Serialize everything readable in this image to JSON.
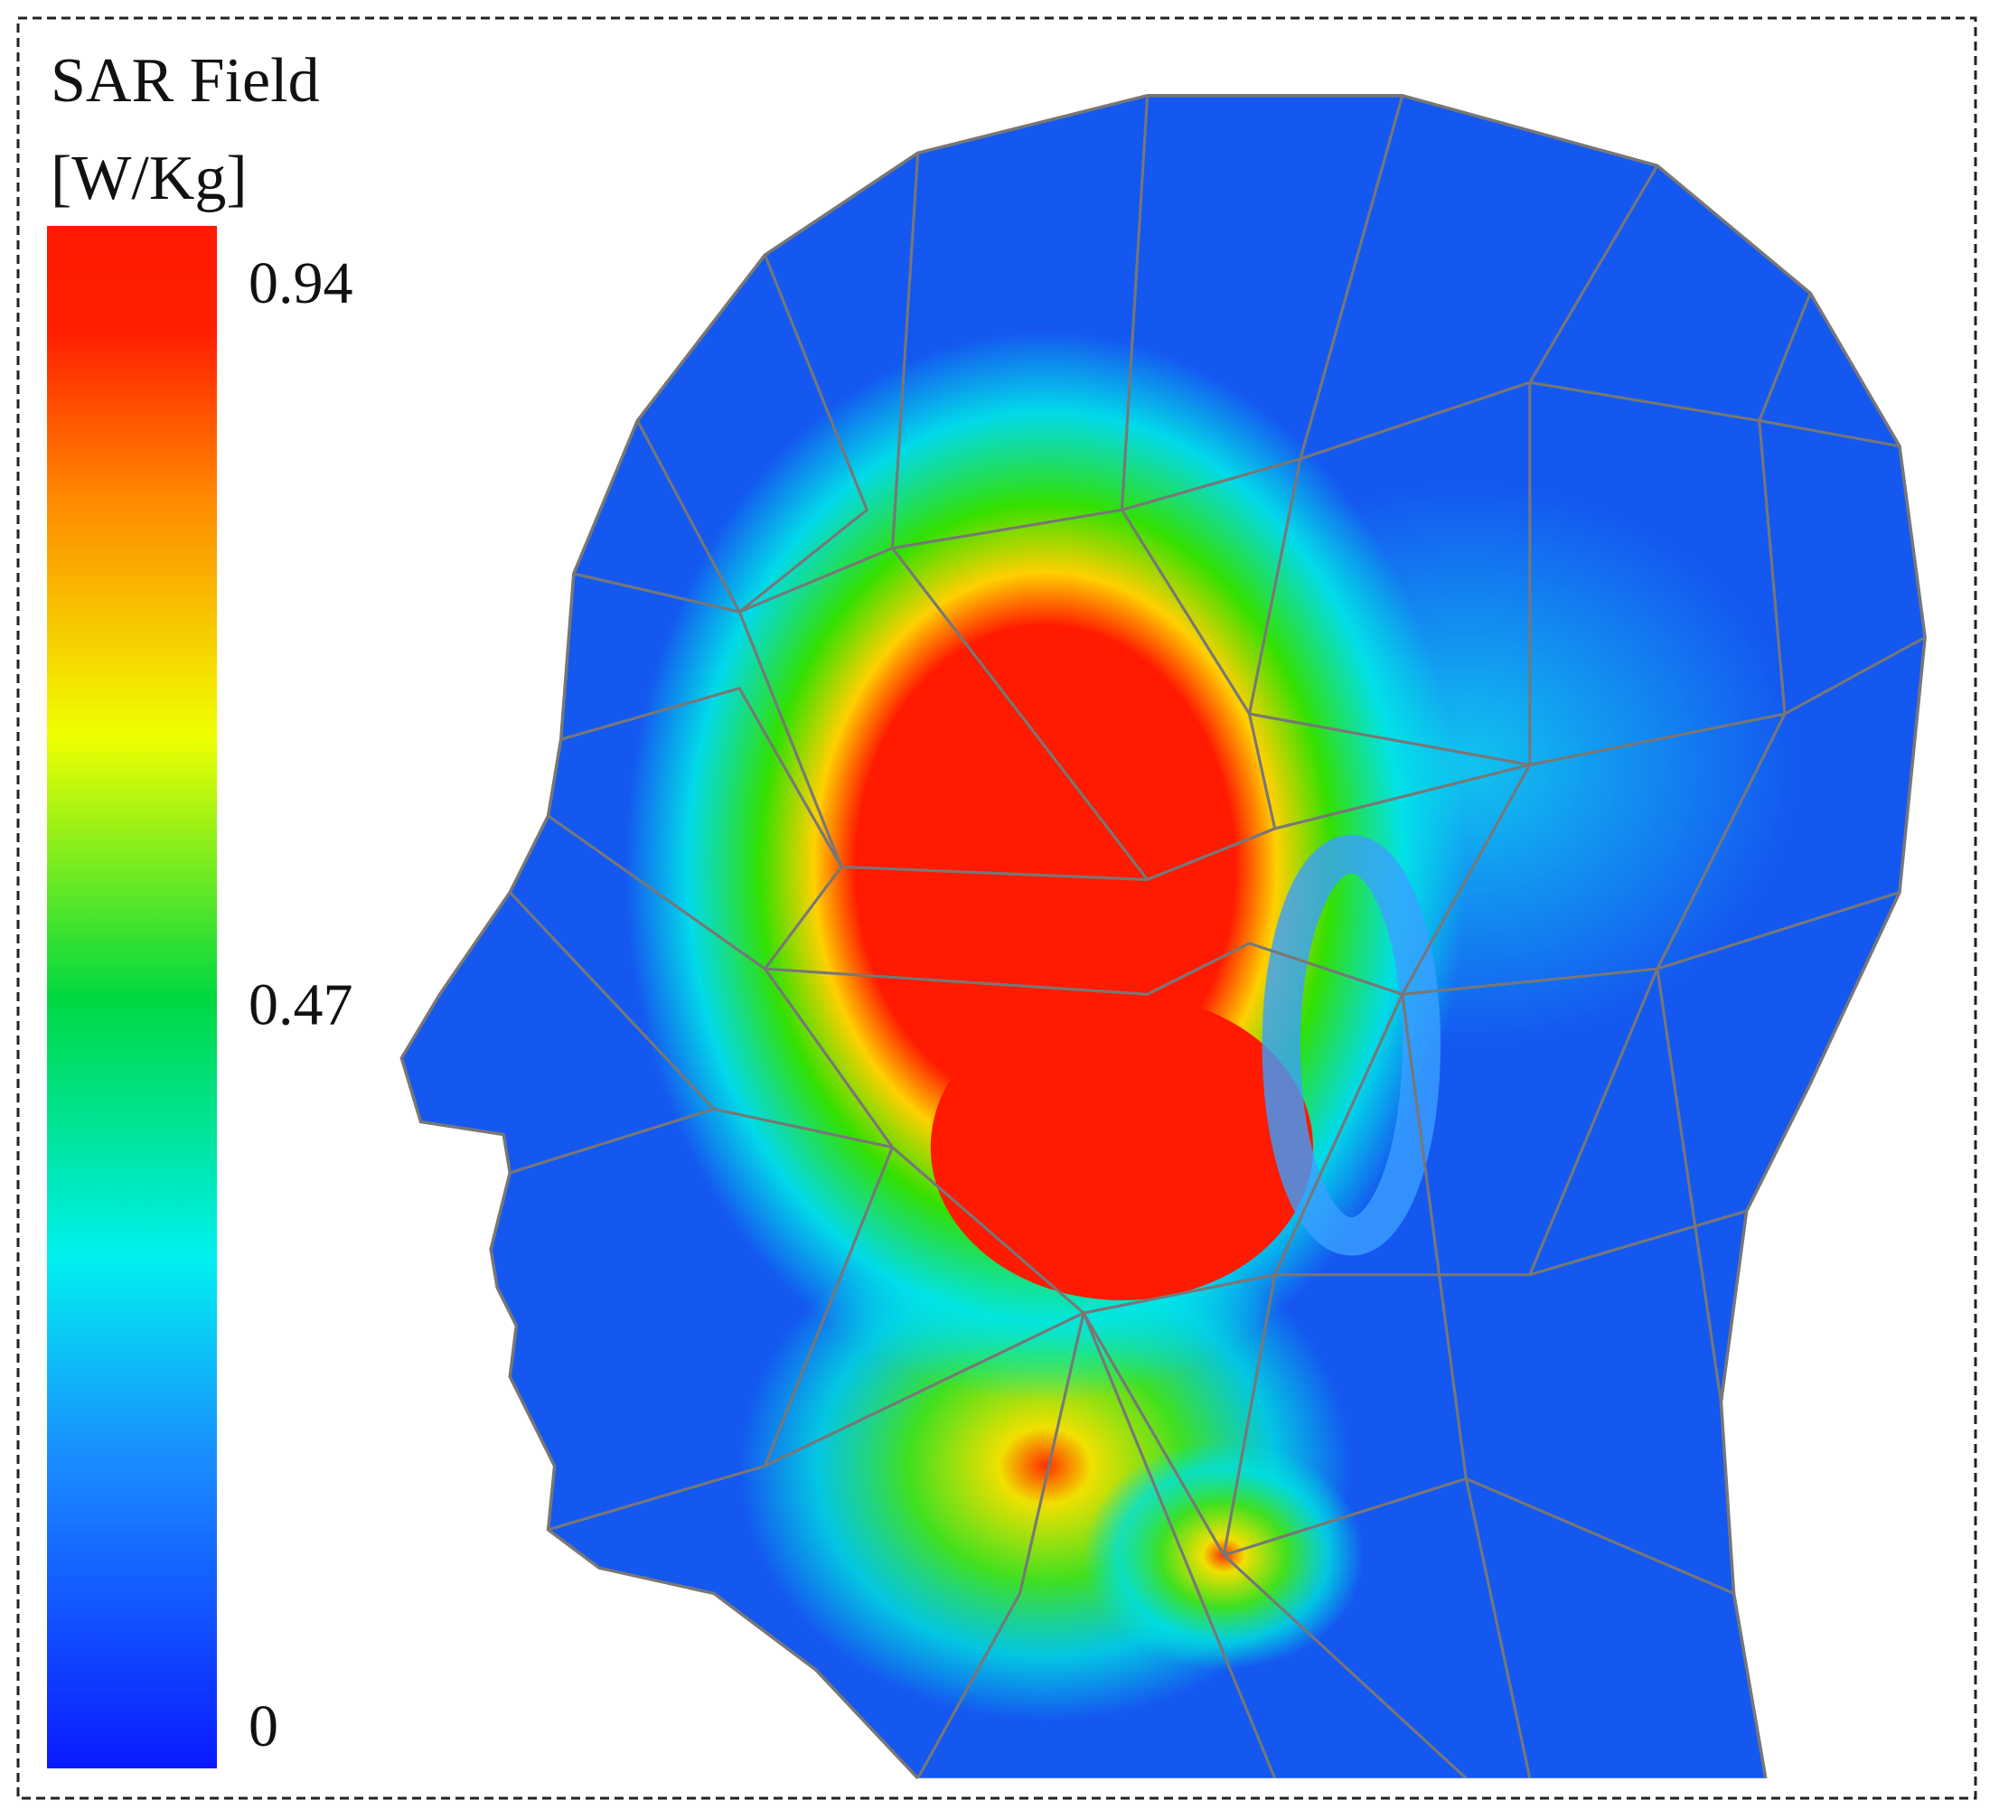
{
  "legend": {
    "title": "SAR Field",
    "unit": "[W/Kg]",
    "ticks": [
      0.94,
      0.47,
      0
    ]
  }
}
